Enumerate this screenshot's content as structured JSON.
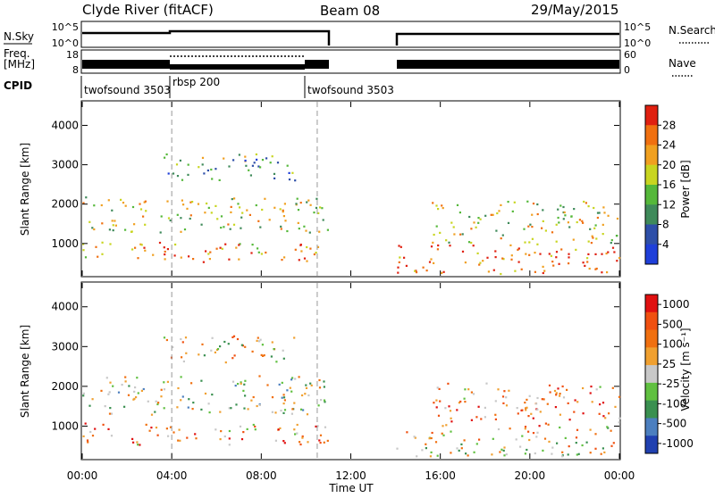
{
  "header": {
    "station": "Clyde River (fitACF)",
    "beam": "Beam 08",
    "date": "29/May/2015"
  },
  "top_panel": {
    "left_label": "N.Sky",
    "right_label": "N.Search",
    "left_ticks": [
      "10^5",
      "10^0"
    ],
    "right_ticks": [
      "10^5",
      "10^0"
    ]
  },
  "freq_panel": {
    "left_label_line1": "Freq.",
    "left_label_line2": "[MHz]",
    "left_ticks": [
      "18",
      "8"
    ],
    "right_label": "Nave",
    "right_ticks": [
      "60",
      "0"
    ]
  },
  "cpid": {
    "label": "CPID",
    "segments": [
      "twofsound 3503",
      "rbsp 200",
      "twofsound 3503"
    ]
  },
  "colors": {
    "power_scale": [
      "#1f3fd9",
      "#2e4fa8",
      "#3f8a5a",
      "#55b83a",
      "#c8d520",
      "#f0a020",
      "#f07010",
      "#e02010"
    ],
    "velocity_scale": [
      "#2040b0",
      "#4c7fbf",
      "#3a9050",
      "#60c040",
      "#c8c8c8",
      "#f0a030",
      "#f07010",
      "#f05010",
      "#e01010"
    ]
  },
  "chart_data": [
    {
      "type": "heatmap",
      "panel": "power",
      "ylabel": "Slant Range [km]",
      "xlabel": "Time UT",
      "x_ticks": [
        "00:00",
        "04:00",
        "08:00",
        "12:00",
        "16:00",
        "20:00",
        "00:00"
      ],
      "y_ticks": [
        "1000",
        "2000",
        "3000",
        "4000"
      ],
      "xlim_hours": [
        0,
        24
      ],
      "ylim_km": [
        180,
        4600
      ],
      "colorbar_label": "Power [dB]",
      "colorbar_ticks": [
        "4",
        "8",
        "12",
        "16",
        "20",
        "24",
        "28"
      ],
      "gap_hours": [
        11,
        14
      ],
      "bands": [
        {
          "t0": 0.0,
          "t1": 11.0,
          "r0": 550,
          "r1": 1050,
          "level": 0.75
        },
        {
          "t0": 0.0,
          "t1": 11.0,
          "r0": 1300,
          "r1": 2200,
          "level": 0.55
        },
        {
          "t0": 3.5,
          "t1": 9.5,
          "r0": 2600,
          "r1": 3300,
          "level": 0.4
        },
        {
          "t0": 14.0,
          "t1": 24.0,
          "r0": 250,
          "r1": 1000,
          "level": 0.85
        },
        {
          "t0": 15.5,
          "t1": 24.0,
          "r0": 1000,
          "r1": 2100,
          "level": 0.55
        }
      ]
    },
    {
      "type": "heatmap",
      "panel": "velocity",
      "ylabel": "Slant Range [km]",
      "xlabel": "Time UT",
      "x_ticks": [
        "00:00",
        "04:00",
        "08:00",
        "12:00",
        "16:00",
        "20:00",
        "00:00"
      ],
      "y_ticks": [
        "1000",
        "2000",
        "3000",
        "4000"
      ],
      "xlim_hours": [
        0,
        24
      ],
      "ylim_km": [
        180,
        4600
      ],
      "colorbar_label": "Velocity [m s⁻¹]",
      "colorbar_ticks": [
        "1000",
        "500",
        "100",
        "25",
        "-25",
        "-100",
        "-500",
        "-1000"
      ],
      "gap_hours": [
        11,
        14
      ],
      "bands": [
        {
          "t0": 0.0,
          "t1": 11.0,
          "r0": 550,
          "r1": 1100,
          "level": 0.7
        },
        {
          "t0": 0.0,
          "t1": 11.0,
          "r0": 1300,
          "r1": 2300,
          "level": 0.45
        },
        {
          "t0": 3.5,
          "t1": 9.5,
          "r0": 2600,
          "r1": 3300,
          "level": 0.6
        },
        {
          "t0": 14.0,
          "t1": 24.0,
          "r0": 250,
          "r1": 1000,
          "level": 0.55
        },
        {
          "t0": 15.5,
          "t1": 24.0,
          "r0": 1000,
          "r1": 2100,
          "level": 0.7
        }
      ]
    }
  ]
}
